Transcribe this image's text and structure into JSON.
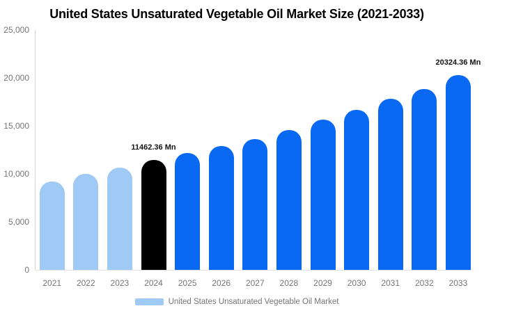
{
  "title": "United States Unsaturated Vegetable Oil Market Size (2021-2033)",
  "legend": {
    "label": "United States Unsaturated Vegetable Oil Market"
  },
  "colors": {
    "historical_bar": "#9ecaf5",
    "base_year_bar": "#000000",
    "forecast_bar": "#0a69f2",
    "axis_text": "#757575",
    "annotation_text": "#111111",
    "axis_line": "#d4d4d4",
    "baseline": "#e3e3e3",
    "title_text": "#000000"
  },
  "chart_data": {
    "type": "bar",
    "title": "United States Unsaturated Vegetable Oil Market Size (2021-2033)",
    "unit": "Mn",
    "categories": [
      "2021",
      "2022",
      "2023",
      "2024",
      "2025",
      "2026",
      "2027",
      "2028",
      "2029",
      "2030",
      "2031",
      "2032",
      "2033"
    ],
    "series": [
      {
        "name": "United States Unsaturated Vegetable Oil Market",
        "values": [
          9200,
          10000,
          10650,
          11462.36,
          12150,
          12900,
          13650,
          14600,
          15650,
          16700,
          17800,
          18850,
          20324.36
        ]
      }
    ],
    "bar_roles": [
      "historical",
      "historical",
      "historical",
      "base_year",
      "forecast",
      "forecast",
      "forecast",
      "forecast",
      "forecast",
      "forecast",
      "forecast",
      "forecast",
      "forecast"
    ],
    "annotations": [
      {
        "category": "2024",
        "text": "11462.36 Mn"
      },
      {
        "category": "2033",
        "text": "20324.36 Mn"
      }
    ],
    "xlabel": "",
    "ylabel": "",
    "ylim": [
      0,
      25000
    ],
    "ytick_labels": [
      "0",
      "5,000",
      "10,000",
      "15,000",
      "20,000",
      "25,000"
    ],
    "grid": false,
    "legend_position": "bottom"
  }
}
